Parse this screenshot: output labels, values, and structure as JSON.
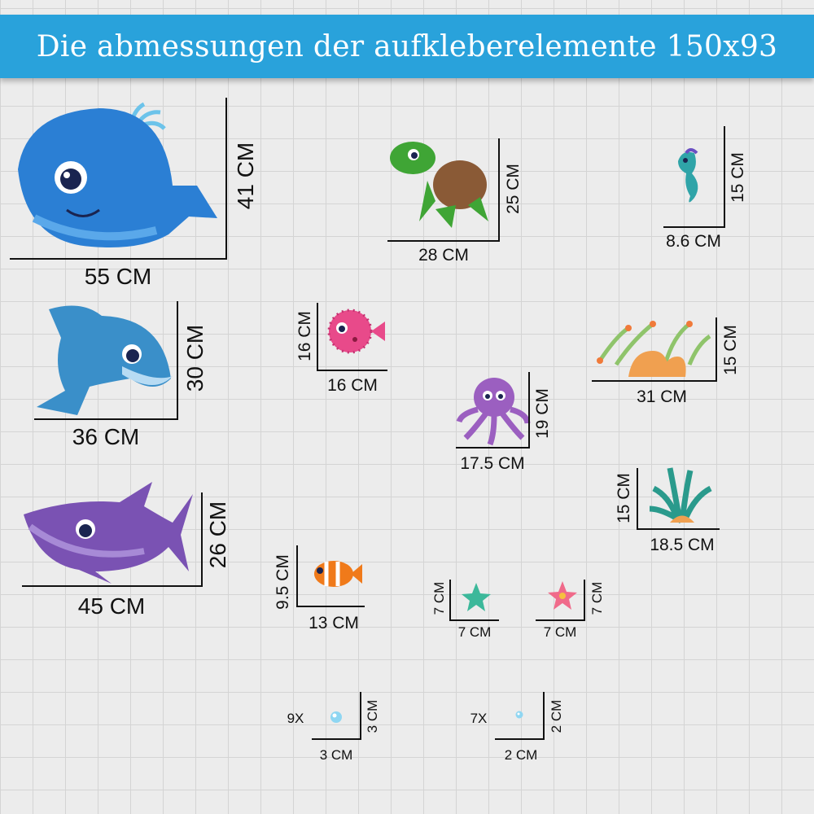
{
  "banner": {
    "title": "Die abmessungen der aufkleberelemente 150x93",
    "color": "#29a2db"
  },
  "items": [
    {
      "name": "whale",
      "width": "55 CM",
      "height": "41 CM"
    },
    {
      "name": "dolphin",
      "width": "36 CM",
      "height": "30 CM"
    },
    {
      "name": "shark",
      "width": "45 CM",
      "height": "26 CM"
    },
    {
      "name": "turtle",
      "width": "28 CM",
      "height": "25 CM"
    },
    {
      "name": "seahorse",
      "width": "8.6 CM",
      "height": "15 CM"
    },
    {
      "name": "pufferfish",
      "width": "16 CM",
      "height": "16 CM"
    },
    {
      "name": "coral",
      "width": "31 CM",
      "height": "15 CM"
    },
    {
      "name": "octopus",
      "width": "17.5 CM",
      "height": "19 CM"
    },
    {
      "name": "seaweed",
      "width": "18.5 CM",
      "height": "15 CM"
    },
    {
      "name": "clownfish",
      "width": "13 CM",
      "height": "9.5 CM"
    },
    {
      "name": "starfish-green",
      "width": "7 CM",
      "height": "7 CM"
    },
    {
      "name": "starfish-pink",
      "width": "7 CM",
      "height": "7 CM"
    },
    {
      "name": "bubble-large",
      "count": "9X",
      "width": "3 CM",
      "height": "3 CM"
    },
    {
      "name": "bubble-small",
      "count": "7X",
      "width": "2 CM",
      "height": "2 CM"
    }
  ]
}
